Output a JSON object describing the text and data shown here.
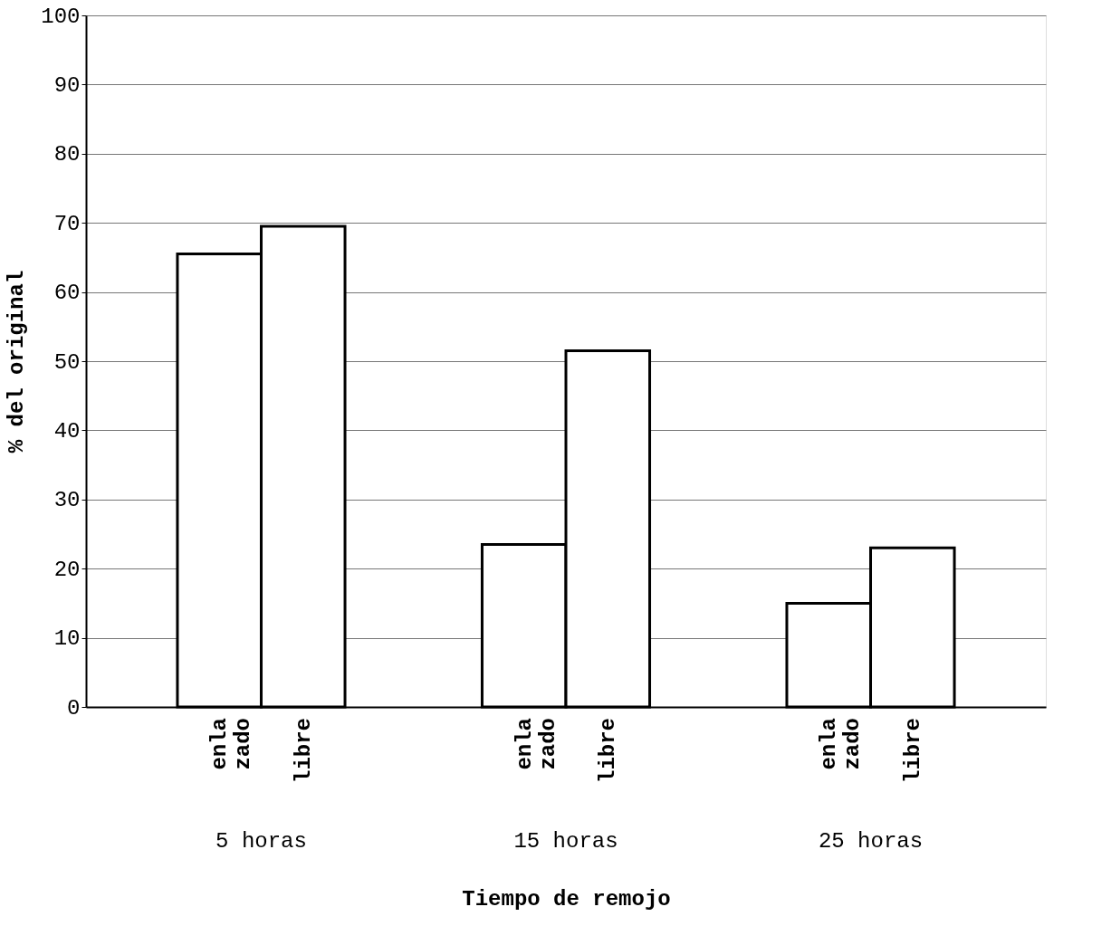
{
  "chart_data": {
    "type": "bar",
    "xlabel": "Tiempo de remojo",
    "ylabel": "% del original",
    "categories": [
      "5 horas",
      "15 horas",
      "25 horas"
    ],
    "series": [
      {
        "name": "enla\nzado",
        "color": "#ffffff",
        "values": [
          65.5,
          23.5,
          15
        ]
      },
      {
        "name": "libre",
        "color": "#ffffff",
        "values": [
          69.5,
          51.5,
          23
        ]
      }
    ],
    "ylim": [
      0,
      100
    ],
    "yticks": [
      0,
      10,
      20,
      30,
      40,
      50,
      60,
      70,
      80,
      90,
      100
    ],
    "grid": "y",
    "legend": false
  }
}
